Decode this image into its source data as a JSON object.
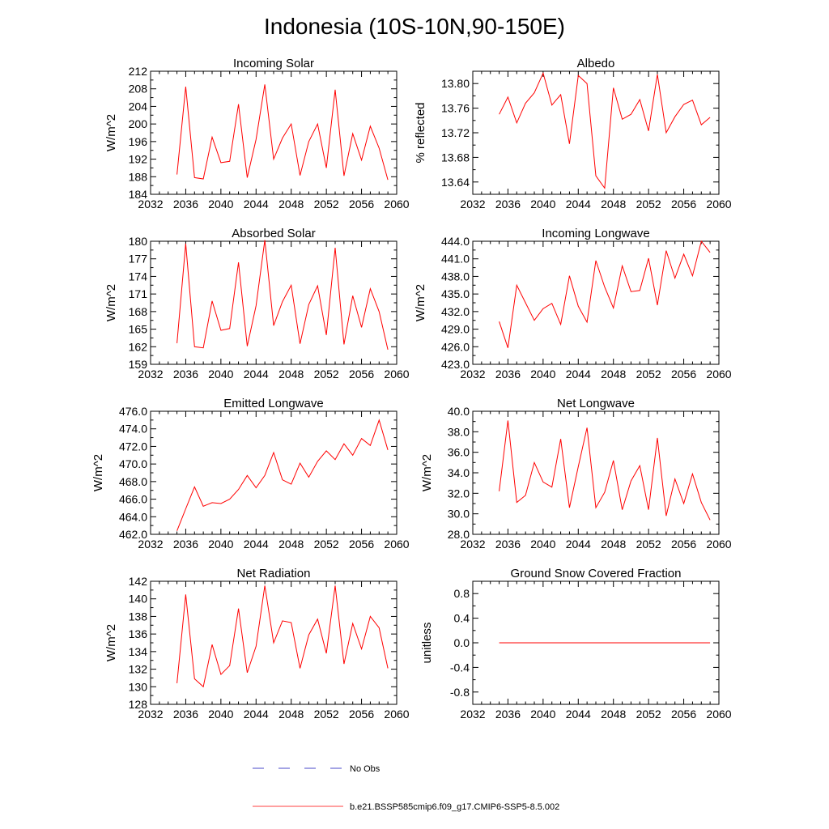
{
  "figure": {
    "title": "Indonesia (10S-10N,90-150E)"
  },
  "legend": {
    "entries": [
      {
        "label": "No Obs",
        "color": "#4a4ac8",
        "style": "dashed"
      },
      {
        "label": "b.e21.BSSP585cmip6.f09_g17.CMIP6-SSP5-8.5.002",
        "color": "#ff4040",
        "style": "solid"
      }
    ]
  },
  "chart_data": [
    {
      "type": "line",
      "title": "Incoming Solar",
      "xlabel": "",
      "ylabel": "W/m^2",
      "xlim": [
        2032,
        2060
      ],
      "ylim": [
        184,
        212
      ],
      "xticks": [
        "2032",
        "2036",
        "2040",
        "2044",
        "2048",
        "2052",
        "2056",
        "2060"
      ],
      "yticks": [
        "184",
        "188",
        "192",
        "196",
        "200",
        "204",
        "208",
        "212"
      ],
      "series": [
        {
          "color": "#ff0000",
          "x": [
            2035,
            2036,
            2037,
            2038,
            2039,
            2040,
            2041,
            2042,
            2043,
            2044,
            2045,
            2046,
            2047,
            2048,
            2049,
            2050,
            2051,
            2052,
            2053,
            2054,
            2055,
            2056,
            2057,
            2058,
            2059
          ],
          "y": [
            188.5,
            208.5,
            187.8,
            187.5,
            197.0,
            191.2,
            191.5,
            204.5,
            187.8,
            196.5,
            209.0,
            192.0,
            196.8,
            200.0,
            188.3,
            196.0,
            200.0,
            190.0,
            207.8,
            188.2,
            197.8,
            191.8,
            199.5,
            194.5,
            187.3
          ]
        }
      ]
    },
    {
      "type": "line",
      "title": "Albedo",
      "xlabel": "",
      "ylabel": "% reflected",
      "xlim": [
        2032,
        2060
      ],
      "ylim": [
        13.62,
        13.82
      ],
      "xticks": [
        "2032",
        "2036",
        "2040",
        "2044",
        "2048",
        "2052",
        "2056",
        "2060"
      ],
      "yticks": [
        "13.64",
        "13.68",
        "13.72",
        "13.76",
        "13.80"
      ],
      "series": [
        {
          "color": "#ff0000",
          "x": [
            2035,
            2036,
            2037,
            2038,
            2039,
            2040,
            2041,
            2042,
            2043,
            2044,
            2045,
            2046,
            2047,
            2048,
            2049,
            2050,
            2051,
            2052,
            2053,
            2054,
            2055,
            2056,
            2057,
            2058,
            2059
          ],
          "y": [
            13.75,
            13.778,
            13.736,
            13.768,
            13.785,
            13.817,
            13.765,
            13.782,
            13.702,
            13.813,
            13.8,
            13.65,
            13.63,
            13.793,
            13.742,
            13.75,
            13.774,
            13.723,
            13.815,
            13.72,
            13.746,
            13.766,
            13.773,
            13.733,
            13.745
          ]
        }
      ]
    },
    {
      "type": "line",
      "title": "Absorbed Solar",
      "xlabel": "",
      "ylabel": "W/m^2",
      "xlim": [
        2032,
        2060
      ],
      "ylim": [
        159,
        180
      ],
      "xticks": [
        "2032",
        "2036",
        "2040",
        "2044",
        "2048",
        "2052",
        "2056",
        "2060"
      ],
      "yticks": [
        "159",
        "162",
        "165",
        "168",
        "171",
        "174",
        "177",
        "180"
      ],
      "series": [
        {
          "color": "#ff0000",
          "x": [
            2035,
            2036,
            2037,
            2038,
            2039,
            2040,
            2041,
            2042,
            2043,
            2044,
            2045,
            2046,
            2047,
            2048,
            2049,
            2050,
            2051,
            2052,
            2053,
            2054,
            2055,
            2056,
            2057,
            2058,
            2059
          ],
          "y": [
            162.6,
            179.6,
            162.0,
            161.8,
            169.8,
            164.8,
            165.1,
            176.4,
            162.1,
            169.0,
            180.2,
            165.6,
            169.7,
            172.5,
            162.5,
            169.2,
            172.4,
            164.0,
            178.9,
            162.4,
            170.7,
            165.3,
            171.9,
            168.0,
            161.5
          ]
        }
      ]
    },
    {
      "type": "line",
      "title": "Incoming Longwave",
      "xlabel": "",
      "ylabel": "W/m^2",
      "xlim": [
        2032,
        2060
      ],
      "ylim": [
        423,
        444
      ],
      "xticks": [
        "2032",
        "2036",
        "2040",
        "2044",
        "2048",
        "2052",
        "2056",
        "2060"
      ],
      "yticks": [
        "423.0",
        "426.0",
        "429.0",
        "432.0",
        "435.0",
        "438.0",
        "441.0",
        "444.0"
      ],
      "series": [
        {
          "color": "#ff0000",
          "x": [
            2035,
            2036,
            2037,
            2038,
            2039,
            2040,
            2041,
            2042,
            2043,
            2044,
            2045,
            2046,
            2047,
            2048,
            2049,
            2050,
            2051,
            2052,
            2053,
            2054,
            2055,
            2056,
            2057,
            2058,
            2059
          ],
          "y": [
            430.3,
            425.8,
            436.5,
            433.5,
            430.5,
            432.5,
            433.4,
            429.8,
            438.1,
            432.9,
            430.2,
            440.7,
            436.2,
            432.6,
            439.8,
            435.4,
            435.6,
            441.1,
            433.1,
            442.4,
            437.7,
            441.8,
            438.1,
            444.0,
            442.1
          ]
        }
      ]
    },
    {
      "type": "line",
      "title": "Emitted Longwave",
      "xlabel": "",
      "ylabel": "W/m^2",
      "xlim": [
        2032,
        2060
      ],
      "ylim": [
        462,
        476
      ],
      "xticks": [
        "2032",
        "2036",
        "2040",
        "2044",
        "2048",
        "2052",
        "2056",
        "2060"
      ],
      "yticks": [
        "462.0",
        "464.0",
        "466.0",
        "468.0",
        "470.0",
        "472.0",
        "474.0",
        "476.0"
      ],
      "series": [
        {
          "color": "#ff0000",
          "x": [
            2035,
            2036,
            2037,
            2038,
            2039,
            2040,
            2041,
            2042,
            2043,
            2044,
            2045,
            2046,
            2047,
            2048,
            2049,
            2050,
            2051,
            2052,
            2053,
            2054,
            2055,
            2056,
            2057,
            2058,
            2059
          ],
          "y": [
            462.4,
            464.9,
            467.4,
            465.2,
            465.6,
            465.5,
            466.0,
            467.1,
            468.7,
            467.3,
            468.7,
            471.3,
            468.2,
            467.7,
            470.1,
            468.5,
            470.3,
            471.5,
            470.5,
            472.3,
            471.0,
            472.9,
            472.1,
            475.0,
            471.6
          ]
        }
      ]
    },
    {
      "type": "line",
      "title": "Net Longwave",
      "xlabel": "",
      "ylabel": "W/m^2",
      "xlim": [
        2032,
        2060
      ],
      "ylim": [
        28,
        40
      ],
      "xticks": [
        "2032",
        "2036",
        "2040",
        "2044",
        "2048",
        "2052",
        "2056",
        "2060"
      ],
      "yticks": [
        "28.0",
        "30.0",
        "32.0",
        "34.0",
        "36.0",
        "38.0",
        "40.0"
      ],
      "series": [
        {
          "color": "#ff0000",
          "x": [
            2035,
            2036,
            2037,
            2038,
            2039,
            2040,
            2041,
            2042,
            2043,
            2044,
            2045,
            2046,
            2047,
            2048,
            2049,
            2050,
            2051,
            2052,
            2053,
            2054,
            2055,
            2056,
            2057,
            2058,
            2059
          ],
          "y": [
            32.2,
            39.1,
            31.1,
            31.8,
            35.0,
            33.1,
            32.6,
            37.3,
            30.6,
            34.6,
            38.4,
            30.6,
            32.1,
            35.2,
            30.4,
            33.2,
            34.7,
            30.4,
            37.4,
            29.8,
            33.4,
            31.0,
            33.9,
            31.1,
            29.4
          ]
        }
      ]
    },
    {
      "type": "line",
      "title": "Net Radiation",
      "xlabel": "",
      "ylabel": "W/m^2",
      "xlim": [
        2032,
        2060
      ],
      "ylim": [
        128,
        142
      ],
      "xticks": [
        "2032",
        "2036",
        "2040",
        "2044",
        "2048",
        "2052",
        "2056",
        "2060"
      ],
      "yticks": [
        "128",
        "130",
        "132",
        "134",
        "136",
        "138",
        "140",
        "142"
      ],
      "series": [
        {
          "color": "#ff0000",
          "x": [
            2035,
            2036,
            2037,
            2038,
            2039,
            2040,
            2041,
            2042,
            2043,
            2044,
            2045,
            2046,
            2047,
            2048,
            2049,
            2050,
            2051,
            2052,
            2053,
            2054,
            2055,
            2056,
            2057,
            2058,
            2059
          ],
          "y": [
            130.4,
            140.5,
            130.9,
            130.0,
            134.8,
            131.4,
            132.4,
            138.9,
            131.6,
            134.6,
            141.5,
            135.0,
            137.5,
            137.3,
            132.1,
            135.9,
            137.7,
            133.8,
            141.5,
            132.6,
            137.2,
            134.3,
            138.0,
            136.7,
            132.1
          ]
        }
      ]
    },
    {
      "type": "line",
      "title": "Ground Snow Covered Fraction",
      "xlabel": "",
      "ylabel": "unitless",
      "xlim": [
        2032,
        2060
      ],
      "ylim": [
        -1.0,
        1.0
      ],
      "xticks": [
        "2032",
        "2036",
        "2040",
        "2044",
        "2048",
        "2052",
        "2056",
        "2060"
      ],
      "yticks": [
        "-0.8",
        "-0.4",
        "0.0",
        "0.4",
        "0.8"
      ],
      "series": [
        {
          "color": "#ff0000",
          "x": [
            2035,
            2036,
            2037,
            2038,
            2039,
            2040,
            2041,
            2042,
            2043,
            2044,
            2045,
            2046,
            2047,
            2048,
            2049,
            2050,
            2051,
            2052,
            2053,
            2054,
            2055,
            2056,
            2057,
            2058,
            2059
          ],
          "y": [
            0,
            0,
            0,
            0,
            0,
            0,
            0,
            0,
            0,
            0,
            0,
            0,
            0,
            0,
            0,
            0,
            0,
            0,
            0,
            0,
            0,
            0,
            0,
            0,
            0
          ]
        }
      ]
    }
  ]
}
